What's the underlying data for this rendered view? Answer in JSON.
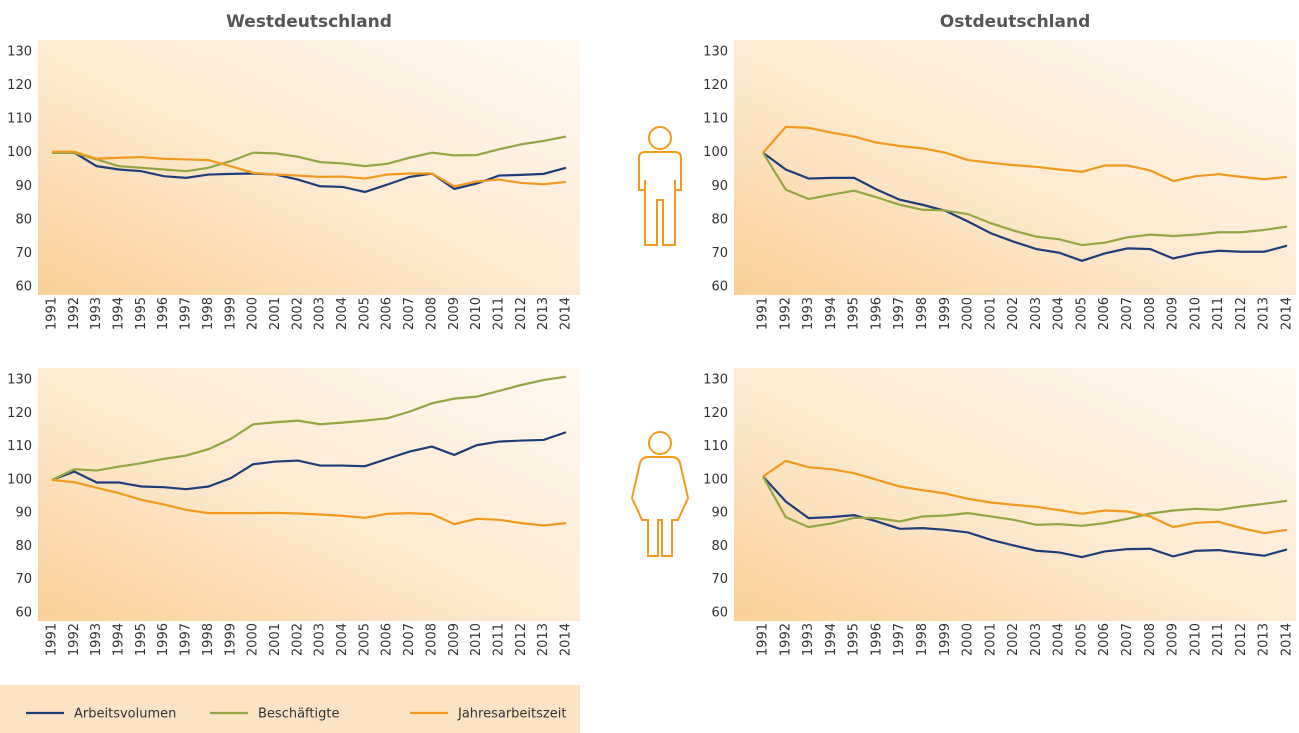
{
  "chart_data": [
    {
      "type": "line",
      "title": "Westdeutschland",
      "categories": [
        "1991",
        "1992",
        "1993",
        "1994",
        "1995",
        "1996",
        "1997",
        "1998",
        "1999",
        "2000",
        "2001",
        "2002",
        "2003",
        "2004",
        "2005",
        "2006",
        "2007",
        "2008",
        "2009",
        "2010",
        "2011",
        "2012",
        "2013",
        "2014"
      ],
      "ylim": [
        60,
        130
      ],
      "yticks": [
        60,
        70,
        80,
        90,
        100,
        110,
        120,
        130
      ],
      "series": [
        {
          "name": "Arbeitsvolumen",
          "color": "#1f3d7a",
          "values": [
            100,
            100,
            96,
            95,
            94.5,
            93,
            92.5,
            93.5,
            93.7,
            93.8,
            93.5,
            92,
            90,
            89.8,
            88.3,
            90.5,
            92.8,
            93.8,
            89.2,
            90.8,
            93.2,
            93.4,
            93.7,
            95.5
          ]
        },
        {
          "name": "Beschäftigte",
          "color": "#94a644",
          "values": [
            100,
            100,
            98,
            96,
            95.5,
            95,
            94.5,
            95.5,
            97.5,
            100,
            99.8,
            98.8,
            97.2,
            96.8,
            96,
            96.7,
            98.5,
            100,
            99.2,
            99.3,
            101,
            102.5,
            103.5,
            104.8
          ]
        },
        {
          "name": "Jahresarbeitszeit",
          "color": "#f39a1e",
          "values": [
            100.3,
            100.3,
            98.2,
            98.5,
            98.7,
            98.2,
            98,
            97.8,
            96,
            94,
            93.5,
            93.2,
            92.8,
            92.9,
            92.3,
            93.5,
            93.8,
            93.8,
            90,
            91.4,
            92,
            91,
            90.6,
            91.3
          ]
        }
      ]
    },
    {
      "type": "line",
      "title": "Ostdeutschland",
      "categories": [
        "1991",
        "1992",
        "1993",
        "1994",
        "1995",
        "1996",
        "1997",
        "1998",
        "1999",
        "2000",
        "2001",
        "2002",
        "2003",
        "2004",
        "2005",
        "2006",
        "2007",
        "2008",
        "2009",
        "2010",
        "2011",
        "2012",
        "2013",
        "2014"
      ],
      "ylim": [
        60,
        130
      ],
      "yticks": [
        60,
        70,
        80,
        90,
        100,
        110,
        120,
        130
      ],
      "series": [
        {
          "color": "#1f3d7a",
          "values": [
            100,
            95,
            92.3,
            92.5,
            92.5,
            89,
            86,
            84.5,
            82.7,
            79.5,
            76,
            73.5,
            71.3,
            70.2,
            67.8,
            70,
            71.5,
            71.3,
            68.5,
            70,
            70.8,
            70.5,
            70.5,
            72.3
          ]
        },
        {
          "color": "#94a644",
          "values": [
            100,
            89,
            86.2,
            87.5,
            88.7,
            86.7,
            84.5,
            83,
            82.8,
            81.7,
            79,
            76.8,
            75,
            74.2,
            72.5,
            73.2,
            74.8,
            75.6,
            75.2,
            75.6,
            76.3,
            76.3,
            77,
            78
          ]
        },
        {
          "color": "#f39a1e",
          "values": [
            100,
            107.7,
            107.4,
            106,
            104.8,
            103,
            102,
            101.3,
            100,
            97.8,
            97,
            96.3,
            95.8,
            95,
            94.3,
            96.2,
            96.2,
            94.7,
            91.6,
            93,
            93.6,
            92.8,
            92.1,
            92.8
          ]
        }
      ]
    },
    {
      "type": "line",
      "categories": [
        "1991",
        "1992",
        "1993",
        "1994",
        "1995",
        "1996",
        "1997",
        "1998",
        "1999",
        "2000",
        "2001",
        "2002",
        "2003",
        "2004",
        "2005",
        "2006",
        "2007",
        "2008",
        "2009",
        "2010",
        "2011",
        "2012",
        "2013",
        "2014"
      ],
      "ylim": [
        60,
        130
      ],
      "yticks": [
        60,
        70,
        80,
        90,
        100,
        110,
        120,
        130
      ],
      "series": [
        {
          "color": "#1f3d7a",
          "values": [
            100,
            102.5,
            99.2,
            99.2,
            98,
            97.8,
            97.2,
            98,
            100.5,
            104.7,
            105.5,
            105.8,
            104.3,
            104.3,
            104.1,
            106.3,
            108.5,
            110,
            107.5,
            110.4,
            111.5,
            111.8,
            112,
            114.3
          ]
        },
        {
          "color": "#94a644",
          "values": [
            100,
            103.2,
            102.8,
            104,
            105,
            106.3,
            107.3,
            109.2,
            112.3,
            116.7,
            117.3,
            117.8,
            116.7,
            117.2,
            117.8,
            118.5,
            120.5,
            123,
            124.4,
            125,
            126.7,
            128.5,
            130,
            131
          ]
        },
        {
          "color": "#f39a1e",
          "values": [
            100,
            99.3,
            97.6,
            96,
            94,
            92.6,
            91,
            90,
            90,
            90,
            90.1,
            89.9,
            89.6,
            89.2,
            88.6,
            89.8,
            90,
            89.7,
            86.7,
            88.3,
            88,
            87,
            86.3,
            87
          ]
        }
      ]
    },
    {
      "type": "line",
      "categories": [
        "1991",
        "1992",
        "1993",
        "1994",
        "1995",
        "1996",
        "1997",
        "1998",
        "1999",
        "2000",
        "2001",
        "2002",
        "2003",
        "2004",
        "2005",
        "2006",
        "2007",
        "2008",
        "2009",
        "2010",
        "2011",
        "2012",
        "2013",
        "2014"
      ],
      "ylim": [
        60,
        130
      ],
      "yticks": [
        60,
        70,
        80,
        90,
        100,
        110,
        120,
        130
      ],
      "series": [
        {
          "color": "#1f3d7a",
          "values": [
            101,
            93.5,
            88.5,
            88.8,
            89.4,
            87.5,
            85.3,
            85.5,
            85,
            84.2,
            82,
            80.3,
            78.7,
            78.2,
            76.8,
            78.5,
            79.2,
            79.3,
            77,
            78.7,
            78.9,
            78,
            77.2,
            79.1
          ]
        },
        {
          "color": "#94a644",
          "values": [
            101,
            88.8,
            85.8,
            86.9,
            88.6,
            88.5,
            87.5,
            89,
            89.3,
            90,
            89,
            88,
            86.5,
            86.7,
            86.2,
            87,
            88.3,
            89.9,
            90.8,
            91.3,
            91,
            92,
            92.8,
            93.7
          ]
        },
        {
          "color": "#f39a1e",
          "values": [
            101,
            105.7,
            103.8,
            103.2,
            102,
            100,
            98,
            96.9,
            95.9,
            94.3,
            93.2,
            92.5,
            91.9,
            90.9,
            89.8,
            90.8,
            90.5,
            89,
            85.8,
            87.1,
            87.4,
            85.5,
            84,
            85
          ]
        }
      ]
    }
  ]
}
